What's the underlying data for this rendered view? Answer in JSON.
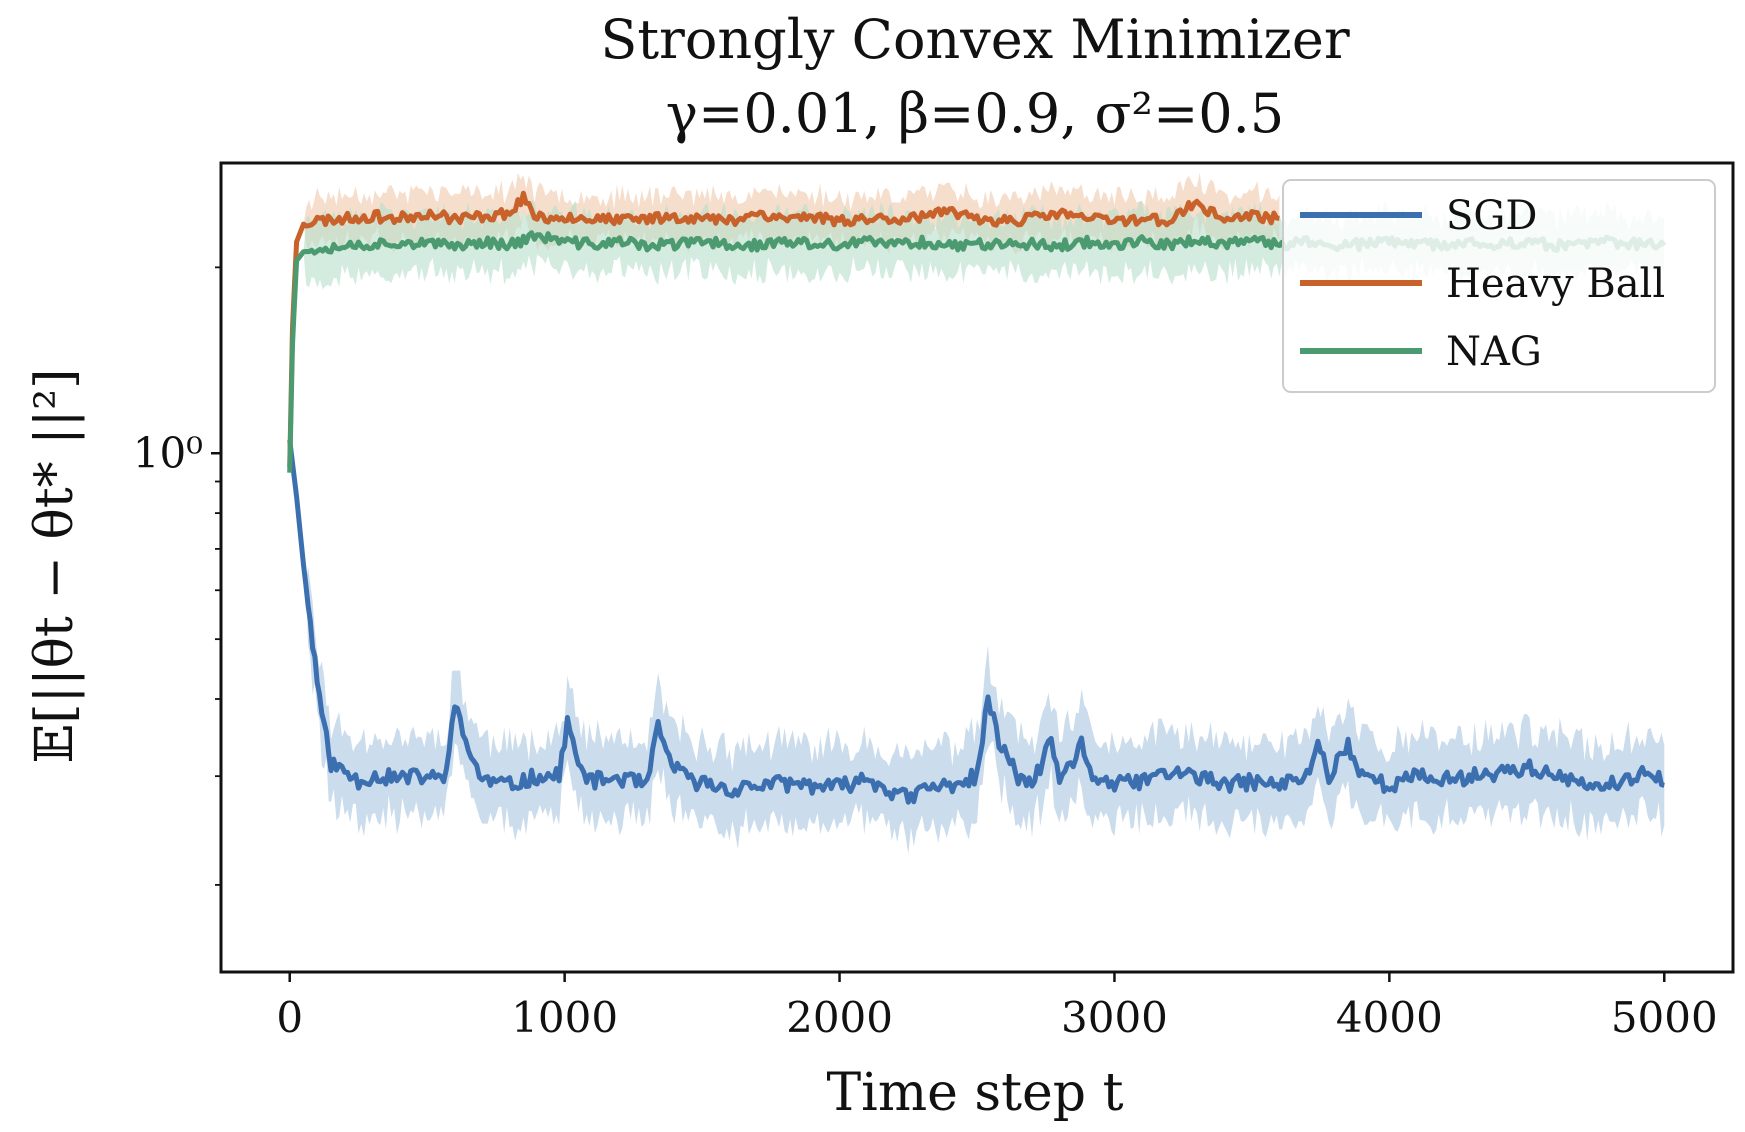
{
  "chart_data": {
    "type": "line",
    "title": "Strongly Convex Minimizer",
    "subtitle": "γ=0.01, β=0.9, σ²=0.5",
    "xlabel": "Time step t",
    "ylabel": "𝔼[||θt − θt* ||²]",
    "xlim": [
      -250,
      5250
    ],
    "ylim_log10": [
      -0.84,
      0.47
    ],
    "yscale": "log",
    "x_ticks": [
      0,
      1000,
      2000,
      3000,
      4000,
      5000
    ],
    "x_tick_labels": [
      "0",
      "1000",
      "2000",
      "3000",
      "4000",
      "5000"
    ],
    "y_ticks": [
      1
    ],
    "y_tick_labels": [
      "10⁰"
    ],
    "legend_position": "top-right",
    "series": [
      {
        "name": "SGD",
        "color": "#3b6fb0",
        "band_color": "#a9c4e0",
        "points": [
          [
            0,
            1.05
          ],
          [
            25,
            0.85
          ],
          [
            50,
            0.66
          ],
          [
            75,
            0.53
          ],
          [
            100,
            0.43
          ],
          [
            125,
            0.36
          ],
          [
            150,
            0.315
          ],
          [
            200,
            0.305
          ],
          [
            250,
            0.295
          ],
          [
            300,
            0.3
          ],
          [
            400,
            0.298
          ],
          [
            500,
            0.3
          ],
          [
            560,
            0.295
          ],
          [
            600,
            0.39
          ],
          [
            640,
            0.34
          ],
          [
            700,
            0.296
          ],
          [
            800,
            0.29
          ],
          [
            900,
            0.3
          ],
          [
            980,
            0.3
          ],
          [
            1010,
            0.37
          ],
          [
            1050,
            0.31
          ],
          [
            1100,
            0.295
          ],
          [
            1200,
            0.298
          ],
          [
            1300,
            0.29
          ],
          [
            1340,
            0.36
          ],
          [
            1380,
            0.32
          ],
          [
            1450,
            0.295
          ],
          [
            1550,
            0.29
          ],
          [
            1600,
            0.285
          ],
          [
            1700,
            0.29
          ],
          [
            1800,
            0.292
          ],
          [
            1900,
            0.29
          ],
          [
            2000,
            0.288
          ],
          [
            2100,
            0.298
          ],
          [
            2200,
            0.282
          ],
          [
            2260,
            0.275
          ],
          [
            2300,
            0.286
          ],
          [
            2400,
            0.29
          ],
          [
            2500,
            0.3
          ],
          [
            2540,
            0.4
          ],
          [
            2580,
            0.34
          ],
          [
            2650,
            0.3
          ],
          [
            2700,
            0.29
          ],
          [
            2770,
            0.34
          ],
          [
            2800,
            0.3
          ],
          [
            2850,
            0.31
          ],
          [
            2880,
            0.34
          ],
          [
            2920,
            0.3
          ],
          [
            3000,
            0.29
          ],
          [
            3100,
            0.295
          ],
          [
            3200,
            0.305
          ],
          [
            3300,
            0.3
          ],
          [
            3400,
            0.29
          ],
          [
            3500,
            0.294
          ],
          [
            3600,
            0.29
          ],
          [
            3700,
            0.3
          ],
          [
            3740,
            0.34
          ],
          [
            3780,
            0.3
          ],
          [
            3850,
            0.34
          ],
          [
            3880,
            0.31
          ],
          [
            3950,
            0.295
          ],
          [
            4000,
            0.29
          ],
          [
            4100,
            0.3
          ],
          [
            4200,
            0.296
          ],
          [
            4300,
            0.3
          ],
          [
            4400,
            0.305
          ],
          [
            4500,
            0.31
          ],
          [
            4600,
            0.3
          ],
          [
            4700,
            0.29
          ],
          [
            4800,
            0.29
          ],
          [
            4900,
            0.295
          ],
          [
            4950,
            0.31
          ],
          [
            5000,
            0.29
          ]
        ]
      },
      {
        "name": "Heavy Ball",
        "color": "#c8612a",
        "band_color": "#f0c8ab",
        "points": [
          [
            0,
            0.95
          ],
          [
            10,
            1.6
          ],
          [
            25,
            2.2
          ],
          [
            50,
            2.35
          ],
          [
            100,
            2.38
          ],
          [
            200,
            2.4
          ],
          [
            300,
            2.42
          ],
          [
            400,
            2.4
          ],
          [
            500,
            2.45
          ],
          [
            600,
            2.4
          ],
          [
            700,
            2.42
          ],
          [
            800,
            2.45
          ],
          [
            850,
            2.6
          ],
          [
            900,
            2.4
          ],
          [
            1000,
            2.42
          ],
          [
            1100,
            2.4
          ],
          [
            1200,
            2.38
          ],
          [
            1300,
            2.4
          ],
          [
            1400,
            2.42
          ],
          [
            1500,
            2.4
          ],
          [
            1600,
            2.38
          ],
          [
            1700,
            2.45
          ],
          [
            1800,
            2.4
          ],
          [
            1900,
            2.42
          ],
          [
            2000,
            2.38
          ],
          [
            2100,
            2.4
          ],
          [
            2200,
            2.4
          ],
          [
            2300,
            2.42
          ],
          [
            2400,
            2.45
          ],
          [
            2500,
            2.4
          ],
          [
            2600,
            2.38
          ],
          [
            2700,
            2.4
          ],
          [
            2800,
            2.45
          ],
          [
            2900,
            2.4
          ],
          [
            3000,
            2.38
          ],
          [
            3100,
            2.4
          ],
          [
            3200,
            2.38
          ],
          [
            3300,
            2.55
          ],
          [
            3350,
            2.45
          ],
          [
            3400,
            2.4
          ],
          [
            3500,
            2.42
          ],
          [
            3600,
            2.4
          ]
        ]
      },
      {
        "name": "NAG",
        "color": "#4c9a70",
        "band_color": "#b7e0cc",
        "points": [
          [
            0,
            0.93
          ],
          [
            10,
            1.5
          ],
          [
            25,
            2.05
          ],
          [
            50,
            2.12
          ],
          [
            100,
            2.15
          ],
          [
            200,
            2.17
          ],
          [
            300,
            2.18
          ],
          [
            400,
            2.2
          ],
          [
            500,
            2.18
          ],
          [
            600,
            2.17
          ],
          [
            700,
            2.2
          ],
          [
            800,
            2.18
          ],
          [
            900,
            2.25
          ],
          [
            1000,
            2.2
          ],
          [
            1100,
            2.18
          ],
          [
            1200,
            2.2
          ],
          [
            1300,
            2.17
          ],
          [
            1400,
            2.18
          ],
          [
            1500,
            2.2
          ],
          [
            1600,
            2.18
          ],
          [
            1700,
            2.17
          ],
          [
            1800,
            2.2
          ],
          [
            1900,
            2.18
          ],
          [
            2000,
            2.17
          ],
          [
            2100,
            2.2
          ],
          [
            2200,
            2.18
          ],
          [
            2300,
            2.2
          ],
          [
            2400,
            2.17
          ],
          [
            2500,
            2.18
          ],
          [
            2600,
            2.2
          ],
          [
            2700,
            2.18
          ],
          [
            2800,
            2.17
          ],
          [
            2900,
            2.2
          ],
          [
            3000,
            2.18
          ],
          [
            3100,
            2.2
          ],
          [
            3200,
            2.17
          ],
          [
            3300,
            2.22
          ],
          [
            3400,
            2.18
          ],
          [
            3500,
            2.2
          ],
          [
            3600,
            2.18
          ],
          [
            3700,
            2.2
          ],
          [
            3800,
            2.17
          ],
          [
            3900,
            2.18
          ],
          [
            4000,
            2.2
          ],
          [
            4100,
            2.18
          ],
          [
            4200,
            2.17
          ],
          [
            4300,
            2.2
          ],
          [
            4400,
            2.18
          ],
          [
            4500,
            2.2
          ],
          [
            4600,
            2.17
          ],
          [
            4700,
            2.18
          ],
          [
            4800,
            2.2
          ],
          [
            4900,
            2.18
          ],
          [
            5000,
            2.17
          ]
        ]
      }
    ]
  }
}
